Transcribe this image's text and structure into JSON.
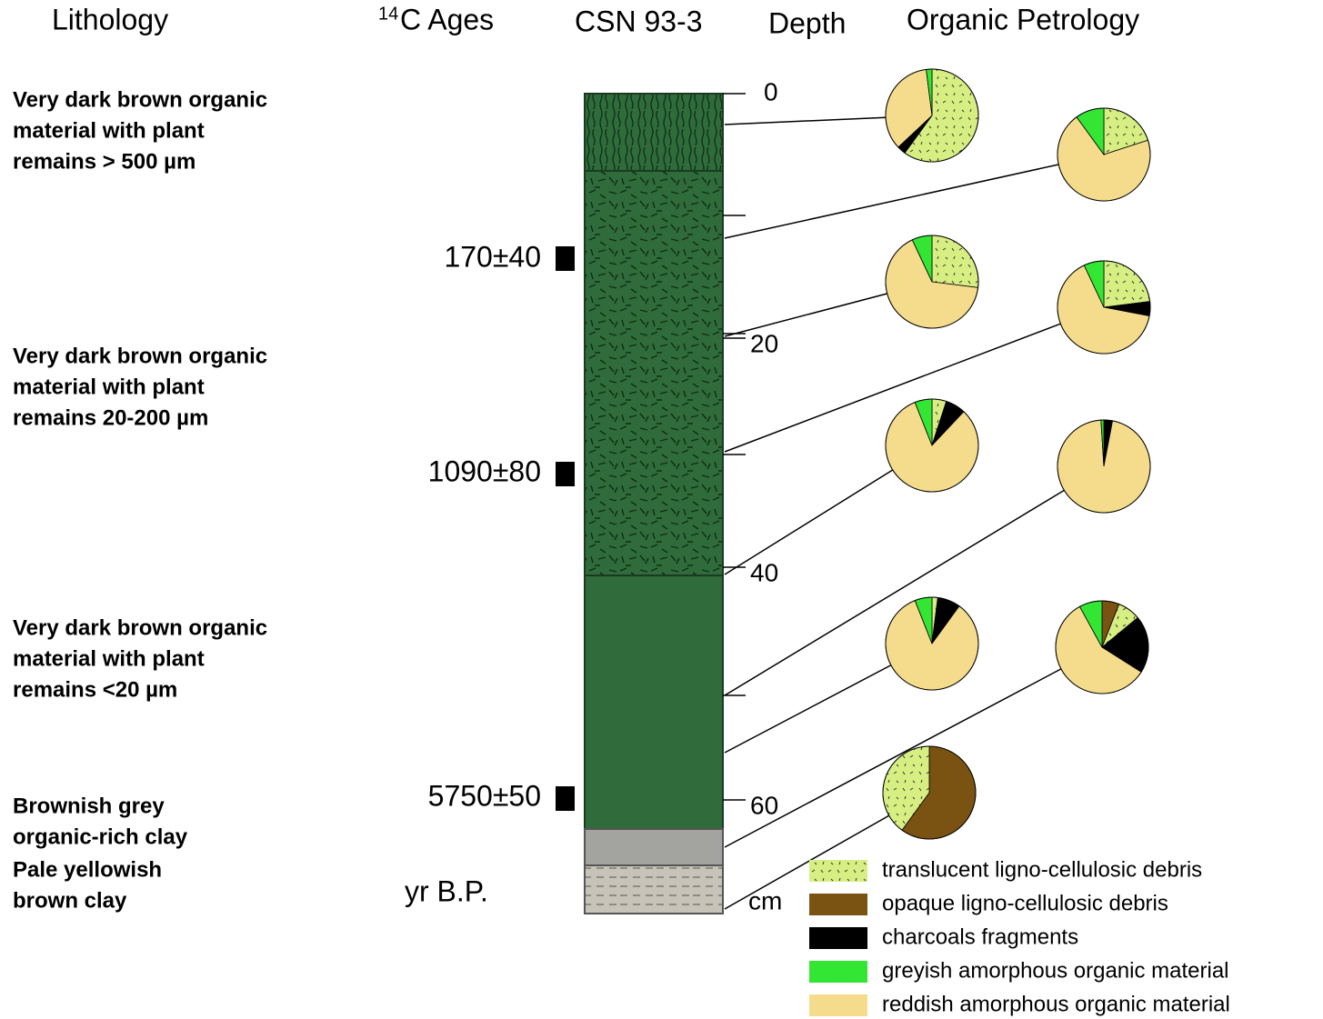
{
  "header": {
    "lithology": "Lithology",
    "ages": {
      "superscript": "14",
      "text": "C Ages"
    },
    "core": "CSN 93-3",
    "depth": "Depth",
    "petrology": "Organic Petrology"
  },
  "lithology": [
    [
      "Very dark brown organic",
      "material with plant",
      "remains > 500 µm"
    ],
    [
      "Very dark brown organic",
      "material with plant",
      "remains 20-200 µm"
    ],
    [
      "Very dark brown organic",
      "material with plant",
      "remains <20 µm"
    ],
    [
      "Brownish grey",
      "organic-rich clay"
    ],
    [
      "Pale yellowish",
      "brown clay"
    ]
  ],
  "ages": [
    "170±40",
    "1090±80",
    "5750±50"
  ],
  "age_unit": "yr B.P.",
  "depth_ticks": [
    0,
    20,
    40,
    60
  ],
  "depth_unit": "cm",
  "components": [
    {
      "name": "translucent ligno-cellulosic debris",
      "color": "#d6ee82"
    },
    {
      "name": "opaque ligno-cellulosic debris",
      "color": "#7a5312"
    },
    {
      "name": "charcoals fragments",
      "color": "#000000"
    },
    {
      "name": "greyish amorphous organic material",
      "color": "#33e633"
    },
    {
      "name": "reddish amorphous organic material",
      "color": "#f5dc8c"
    }
  ],
  "pies": [
    {
      "values": [
        60,
        0,
        3,
        2,
        35
      ]
    },
    {
      "values": [
        20,
        0,
        0,
        10,
        70
      ]
    },
    {
      "values": [
        27,
        0,
        0,
        7,
        66
      ]
    },
    {
      "values": [
        23,
        0,
        5,
        7,
        65
      ]
    },
    {
      "values": [
        5,
        0,
        7,
        6,
        82
      ]
    },
    {
      "values": [
        0,
        0,
        3,
        1,
        96
      ]
    },
    {
      "values": [
        2,
        0,
        8,
        6,
        84
      ]
    },
    {
      "values": [
        8,
        6,
        20,
        8,
        58
      ]
    },
    {
      "values": [
        40,
        60,
        0,
        0,
        0
      ]
    }
  ]
}
